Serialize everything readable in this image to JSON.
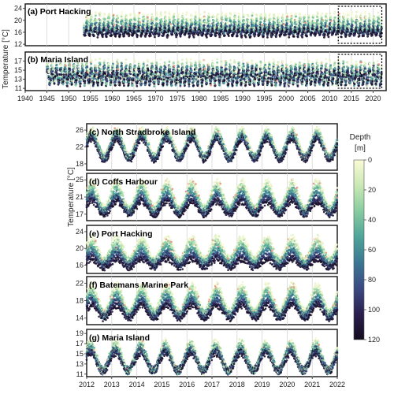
{
  "figure": {
    "ylabel": "Temperature [°C]",
    "colorbar": {
      "title": "Depth",
      "unit": "[m]",
      "ticks": [
        "0",
        "20",
        "40",
        "60",
        "80",
        "100",
        "120"
      ],
      "colors": [
        "#fbfbd6",
        "#c9e8b4",
        "#87cca0",
        "#4fa49a",
        "#3b7792",
        "#3b4a83",
        "#2a1f4e",
        "#140d1f"
      ]
    }
  },
  "chart_data": [
    {
      "type": "scatter",
      "title": "(a) Port Hacking",
      "x_range": [
        1940,
        2023
      ],
      "x_ticks": [
        "1940",
        "1945",
        "1950",
        "1955",
        "1960",
        "1965",
        "1970",
        "1975",
        "1980",
        "1985",
        "1990",
        "1995",
        "2000",
        "2005",
        "2010",
        "2015",
        "2020"
      ],
      "ylim": [
        11.5,
        25.5
      ],
      "y_ticks": [
        "12",
        "16",
        "20",
        "24"
      ],
      "data_start": 1953.5,
      "data_end": 2022.0,
      "highlight_box": [
        2012,
        2022
      ],
      "summary": {
        "shallow_mean": 19.5,
        "shallow_amplitude": 2.6,
        "deep_mean": 16.0,
        "deep_amplitude": 1.0
      }
    },
    {
      "type": "scatter",
      "title": "(b) Maria Island",
      "x_range": [
        1940,
        2023
      ],
      "x_ticks": [
        "1940",
        "1945",
        "1950",
        "1955",
        "1960",
        "1965",
        "1970",
        "1975",
        "1980",
        "1985",
        "1990",
        "1995",
        "2000",
        "2005",
        "2010",
        "2015",
        "2020"
      ],
      "ylim": [
        10.5,
        19.0
      ],
      "y_ticks": [
        "11",
        "13",
        "15",
        "17"
      ],
      "data_start": 1945.0,
      "data_end": 2022.0,
      "highlight_box": [
        2012,
        2022
      ],
      "summary": {
        "shallow_mean": 14.5,
        "shallow_amplitude": 2.2,
        "deep_mean": 13.5,
        "deep_amplitude": 1.3
      }
    },
    {
      "type": "scatter",
      "title": "(c) North Stradbroke Island",
      "x_range": [
        2012,
        2022
      ],
      "x_ticks": [
        "2012",
        "2013",
        "2014",
        "2015",
        "2016",
        "2017",
        "2018",
        "2019",
        "2020",
        "2021",
        "2022"
      ],
      "ylim": [
        16.5,
        27.5
      ],
      "y_ticks": [
        "18",
        "22",
        "26"
      ],
      "summary": {
        "shallow_mean": 23.0,
        "shallow_amplitude": 3.0,
        "deep_mean": 21.5,
        "deep_amplitude": 2.5
      }
    },
    {
      "type": "scatter",
      "title": "(d) Coffs Harbour",
      "x_range": [
        2012,
        2022
      ],
      "x_ticks": [
        "2012",
        "2013",
        "2014",
        "2015",
        "2016",
        "2017",
        "2018",
        "2019",
        "2020",
        "2021",
        "2022"
      ],
      "ylim": [
        15.5,
        26.5
      ],
      "y_ticks": [
        "17",
        "21",
        "25"
      ],
      "summary": {
        "shallow_mean": 21.5,
        "shallow_amplitude": 3.0,
        "deep_mean": 18.5,
        "deep_amplitude": 1.5
      }
    },
    {
      "type": "scatter",
      "title": "(e) Port Hacking",
      "x_range": [
        2012,
        2022
      ],
      "x_ticks": [
        "2012",
        "2013",
        "2014",
        "2015",
        "2016",
        "2017",
        "2018",
        "2019",
        "2020",
        "2021",
        "2022"
      ],
      "ylim": [
        14.0,
        25.5
      ],
      "y_ticks": [
        "16",
        "20",
        "24"
      ],
      "summary": {
        "shallow_mean": 20.0,
        "shallow_amplitude": 2.5,
        "deep_mean": 16.5,
        "deep_amplitude": 1.0
      }
    },
    {
      "type": "scatter",
      "title": "(f) Batemans Marine Park",
      "x_range": [
        2012,
        2022
      ],
      "x_ticks": [
        "2012",
        "2013",
        "2014",
        "2015",
        "2016",
        "2017",
        "2018",
        "2019",
        "2020",
        "2021",
        "2022"
      ],
      "ylim": [
        12.5,
        23.5
      ],
      "y_ticks": [
        "14",
        "18",
        "22"
      ],
      "summary": {
        "shallow_mean": 18.5,
        "shallow_amplitude": 3.0,
        "deep_mean": 15.5,
        "deep_amplitude": 1.5
      }
    },
    {
      "type": "scatter",
      "title": "(g) Maria Island",
      "x_range": [
        2012,
        2022
      ],
      "x_ticks": [
        "2012",
        "2013",
        "2014",
        "2015",
        "2016",
        "2017",
        "2018",
        "2019",
        "2020",
        "2021",
        "2022"
      ],
      "ylim": [
        10.5,
        19.8
      ],
      "y_ticks": [
        "11",
        "13",
        "15",
        "17",
        "19"
      ],
      "summary": {
        "shallow_mean": 14.5,
        "shallow_amplitude": 2.8,
        "deep_mean": 13.5,
        "deep_amplitude": 1.8
      }
    }
  ]
}
